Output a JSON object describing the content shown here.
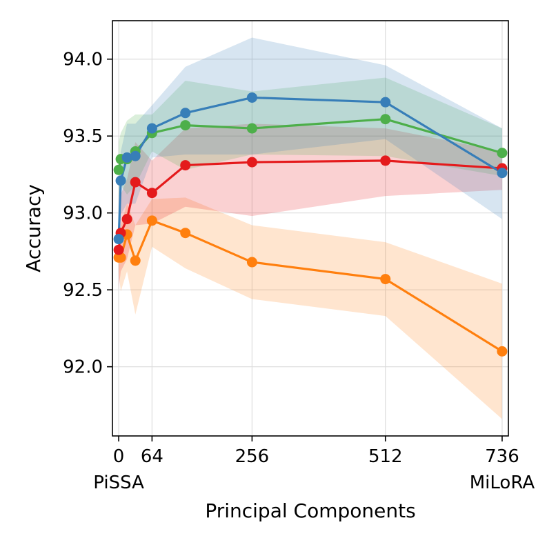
{
  "chart_data": {
    "type": "line",
    "title": "",
    "xlabel": "Principal Components",
    "ylabel": "Accuracy",
    "xlim": [
      -12,
      748
    ],
    "ylim": [
      91.55,
      94.25
    ],
    "grid": true,
    "x_ticks": [
      {
        "value": 0,
        "label": "0"
      },
      {
        "value": 64,
        "label": "64"
      },
      {
        "value": 256,
        "label": "256"
      },
      {
        "value": 512,
        "label": "512"
      },
      {
        "value": 736,
        "label": "736"
      }
    ],
    "x_subtick_labels": [
      {
        "value": 0,
        "label": "PiSSA"
      },
      {
        "value": 736,
        "label": "MiLoRA"
      }
    ],
    "y_ticks": [
      {
        "value": 92.0,
        "label": "92.0"
      },
      {
        "value": 92.5,
        "label": "92.5"
      },
      {
        "value": 93.0,
        "label": "93.0"
      },
      {
        "value": 93.5,
        "label": "93.5"
      },
      {
        "value": 94.0,
        "label": "94.0"
      }
    ],
    "series": [
      {
        "name": "orange",
        "color": "#ff7f0e",
        "x": [
          0,
          4,
          16,
          32,
          64,
          128,
          256,
          512,
          736
        ],
        "values": [
          92.71,
          92.71,
          92.86,
          92.69,
          92.95,
          92.87,
          92.68,
          92.57,
          92.1
        ],
        "lower": [
          92.62,
          92.49,
          92.62,
          92.34,
          92.78,
          92.64,
          92.44,
          92.33,
          91.66
        ],
        "upper": [
          92.8,
          92.92,
          93.06,
          92.92,
          93.09,
          93.1,
          92.92,
          92.81,
          92.54
        ]
      },
      {
        "name": "red",
        "color": "#e41a1c",
        "x": [
          0,
          4,
          16,
          32,
          64,
          128,
          256,
          512,
          736
        ],
        "values": [
          92.76,
          92.87,
          92.96,
          93.2,
          93.13,
          93.31,
          93.33,
          93.34,
          93.29
        ],
        "lower": [
          92.5,
          92.62,
          92.7,
          92.92,
          92.93,
          93.04,
          92.98,
          93.11,
          93.15
        ],
        "upper": [
          93.02,
          93.12,
          93.22,
          93.46,
          93.34,
          93.55,
          93.58,
          93.55,
          93.4
        ]
      },
      {
        "name": "green",
        "color": "#4daf4a",
        "x": [
          0,
          4,
          16,
          32,
          64,
          128,
          256,
          512,
          736
        ],
        "values": [
          93.28,
          93.35,
          93.35,
          93.4,
          93.52,
          93.57,
          93.55,
          93.61,
          93.39
        ],
        "lower": [
          93.1,
          93.18,
          93.12,
          93.18,
          93.4,
          93.28,
          93.38,
          93.37,
          93.24
        ],
        "upper": [
          93.46,
          93.52,
          93.6,
          93.64,
          93.64,
          93.86,
          93.79,
          93.88,
          93.55
        ]
      },
      {
        "name": "blue",
        "color": "#377eb8",
        "x": [
          0,
          4,
          16,
          32,
          64,
          128,
          256,
          512,
          736
        ],
        "values": [
          92.83,
          93.21,
          93.36,
          93.37,
          93.55,
          93.65,
          93.75,
          93.72,
          93.26
        ],
        "lower": [
          92.66,
          92.99,
          93.06,
          93.06,
          93.36,
          93.38,
          93.38,
          93.48,
          92.96
        ],
        "upper": [
          93.0,
          93.4,
          93.58,
          93.58,
          93.7,
          93.95,
          94.14,
          93.96,
          93.55
        ]
      }
    ]
  }
}
